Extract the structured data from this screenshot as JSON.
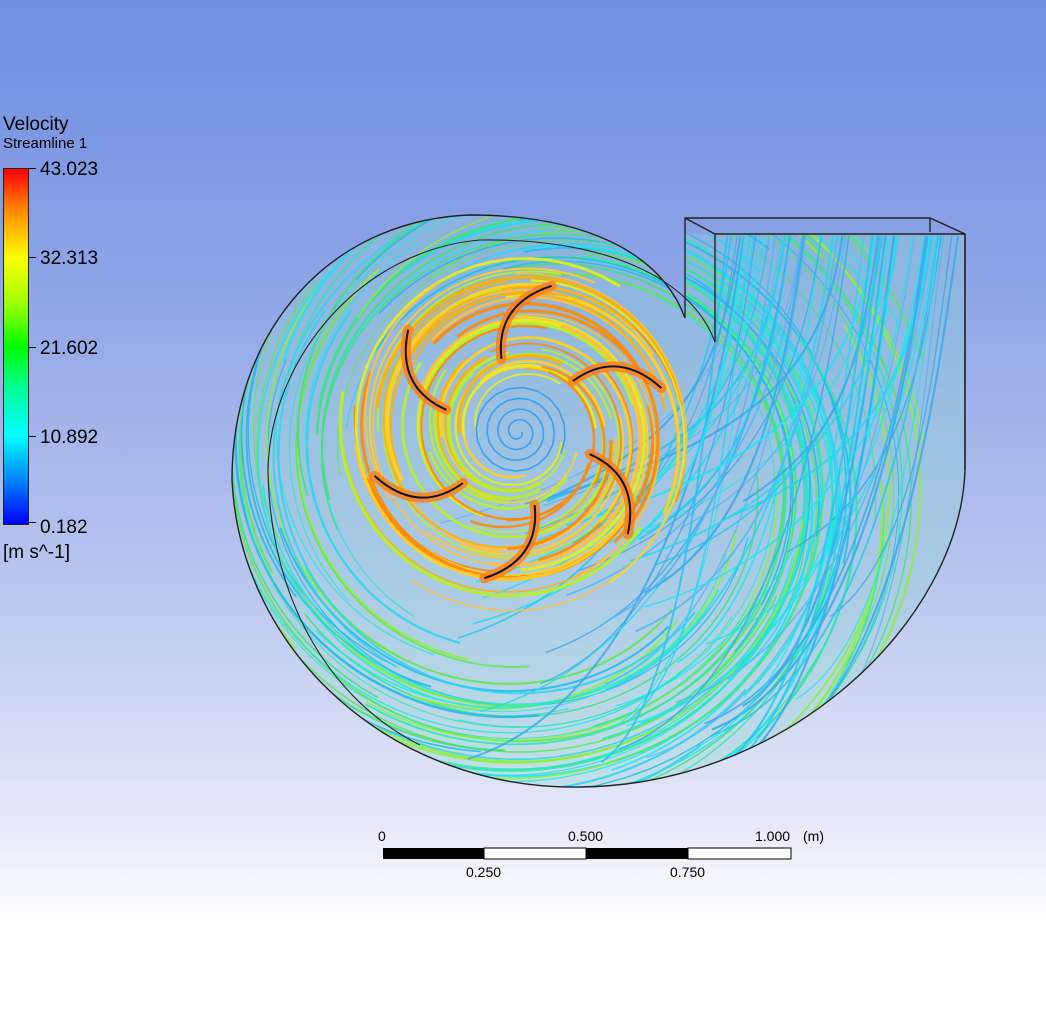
{
  "legend": {
    "title": "Velocity",
    "subtitle": "Streamline 1",
    "labels": [
      "43.023",
      "32.313",
      "21.602",
      "10.892",
      "0.182"
    ],
    "unit": "[m s^-1]"
  },
  "scale": {
    "top_labels": [
      "0",
      "0.500",
      "1.000"
    ],
    "unit": "(m)",
    "bottom_labels": [
      "0.250",
      "0.750"
    ]
  },
  "colors": {
    "background_top": "#6f8fe0",
    "background_bottom": "#ffffff",
    "colormap": [
      "#0000ff",
      "#00ffff",
      "#00ff00",
      "#ffff00",
      "#ff0000"
    ]
  }
}
